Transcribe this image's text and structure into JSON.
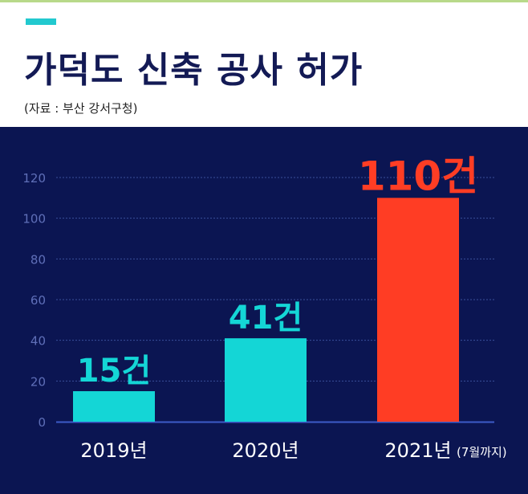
{
  "header": {
    "title": "가덕도 신축 공사 허가",
    "source": "(자료 : 부산 강서구청)",
    "accent_color": "#22c9cf"
  },
  "chart_data": {
    "type": "bar",
    "title": "가덕도 신축 공사 허가",
    "categories": [
      "2019년",
      "2020년",
      "2021년"
    ],
    "category_notes": [
      "",
      "",
      "(7월까지)"
    ],
    "values": [
      15,
      41,
      110
    ],
    "data_labels": [
      "15건",
      "41건",
      "110건"
    ],
    "bar_colors": [
      "#14d6d6",
      "#14d6d6",
      "#ff3d24"
    ],
    "yticks": [
      "0",
      "20",
      "40",
      "60",
      "80",
      "100",
      "120"
    ],
    "ylim": [
      0,
      120
    ],
    "grid": true,
    "xlabel": "",
    "ylabel": ""
  }
}
